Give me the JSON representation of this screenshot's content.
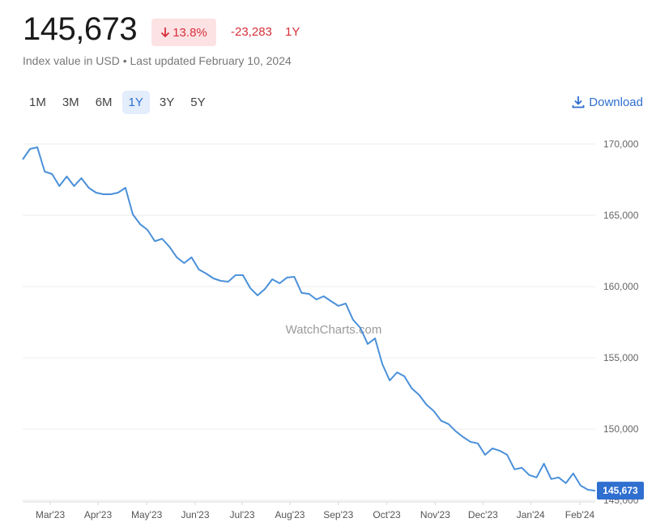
{
  "header": {
    "price": "145,673",
    "change_pct": "13.8%",
    "change": "-23,283",
    "period": "1Y",
    "subtitle": "Index value in USD • Last updated February 10, 2024"
  },
  "controls": {
    "ranges": [
      "1M",
      "3M",
      "6M",
      "1Y",
      "3Y",
      "5Y"
    ],
    "download": "Download"
  },
  "watermark": "WatchCharts.com",
  "chart_data": {
    "type": "line",
    "color": "#4a90d9",
    "grid": true,
    "values": [
      168920,
      169660,
      169770,
      168070,
      167900,
      167050,
      167730,
      167050,
      167610,
      166930,
      166590,
      166480,
      166480,
      166590,
      166930,
      165060,
      164380,
      163980,
      163180,
      163350,
      162790,
      162050,
      161650,
      162050,
      161200,
      160910,
      160570,
      160400,
      160340,
      160800,
      160800,
      159890,
      159380,
      159830,
      160510,
      160230,
      160630,
      160680,
      159550,
      159490,
      159090,
      159320,
      158980,
      158640,
      158810,
      157670,
      157100,
      155970,
      156360,
      154550,
      153410,
      153980,
      153700,
      152850,
      152390,
      151710,
      151260,
      150580,
      150350,
      149840,
      149440,
      149100,
      148990,
      148190,
      148640,
      148470,
      148190,
      147170,
      147280,
      146770,
      146600,
      147570,
      146490,
      146600,
      146200,
      146880,
      146030,
      145740,
      145673
    ],
    "xticks": [
      {
        "value": 3.75,
        "label": "Mar'23"
      },
      {
        "value": 10.26,
        "label": "Apr'23"
      },
      {
        "value": 16.9,
        "label": "May'23"
      },
      {
        "value": 23.5,
        "label": "Jun'23"
      },
      {
        "value": 29.9,
        "label": "Jul'23"
      },
      {
        "value": 36.4,
        "label": "Aug'23"
      },
      {
        "value": 43.0,
        "label": "Sep'23"
      },
      {
        "value": 49.6,
        "label": "Oct'23"
      },
      {
        "value": 56.2,
        "label": "Nov'23"
      },
      {
        "value": 62.7,
        "label": "Dec'23"
      },
      {
        "value": 69.2,
        "label": "Jan'24"
      },
      {
        "value": 75.9,
        "label": "Feb'24"
      }
    ],
    "ylim": [
      145000,
      170000
    ],
    "yticks": [
      {
        "value": 145000,
        "label": "145,000"
      },
      {
        "value": 150000,
        "label": "150,000"
      },
      {
        "value": 155000,
        "label": "155,000"
      },
      {
        "value": 160000,
        "label": "160,000"
      },
      {
        "value": 165000,
        "label": "165,000"
      },
      {
        "value": 170000,
        "label": "170,000"
      }
    ]
  }
}
